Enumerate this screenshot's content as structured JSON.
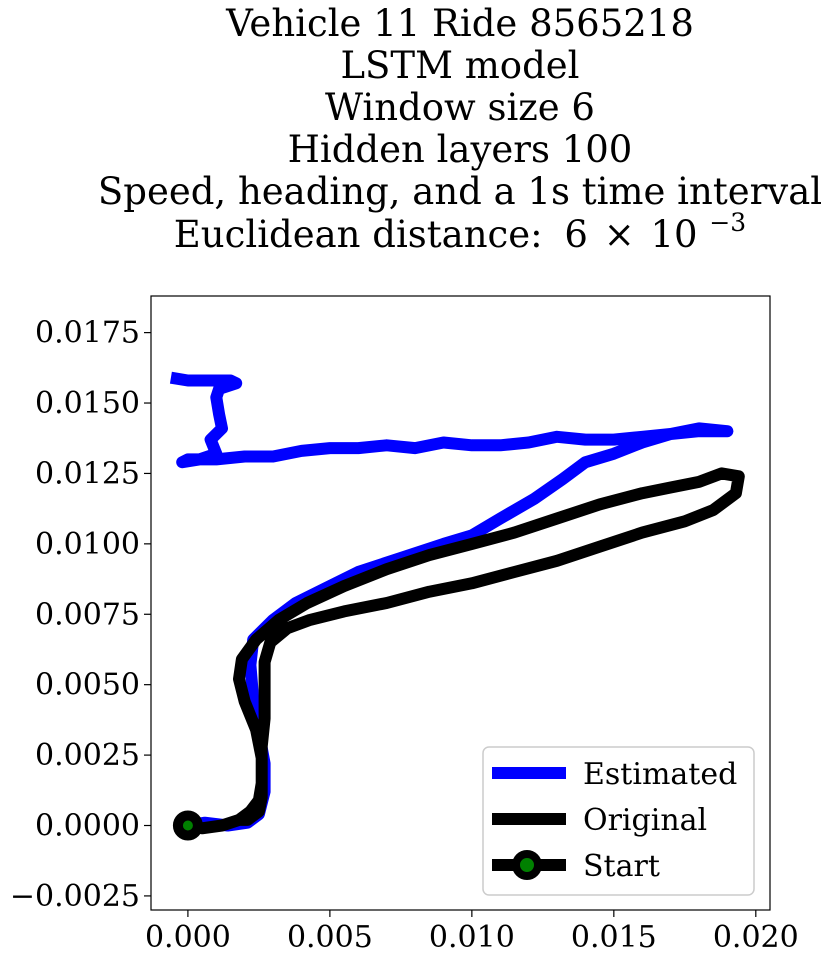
{
  "chart_data": {
    "type": "line",
    "title_lines": [
      "Vehicle 11 Ride 8565218",
      "LSTM model",
      "Window size 6",
      "Hidden layers 100",
      "Speed, heading, and a 1s time interval"
    ],
    "title_distance_label": "Euclidean distance:",
    "title_distance_mantissa": "6",
    "title_distance_times": "×",
    "title_distance_base": "10",
    "title_distance_exponent": "−3",
    "xlim": [
      -0.0013,
      0.0205
    ],
    "ylim": [
      -0.003,
      0.0188
    ],
    "xticks": [
      0.0,
      0.005,
      0.01,
      0.015,
      0.02
    ],
    "xtick_labels": [
      "0.000",
      "0.005",
      "0.010",
      "0.015",
      "0.020"
    ],
    "yticks": [
      -0.0025,
      0.0,
      0.0025,
      0.005,
      0.0075,
      0.01,
      0.0125,
      0.015,
      0.0175
    ],
    "ytick_labels": [
      "−0.0025",
      "0.0000",
      "0.0025",
      "0.0050",
      "0.0075",
      "0.0100",
      "0.0125",
      "0.0150",
      "0.0175"
    ],
    "grid": false,
    "legend_position": "bottom-right",
    "series": [
      {
        "name": "Estimated",
        "color": "#0000ff",
        "points": [
          [
            0.0,
            0.0
          ],
          [
            0.0006,
            0.0001
          ],
          [
            0.0014,
            0.0
          ],
          [
            0.0021,
            0.0001
          ],
          [
            0.0025,
            0.0004
          ],
          [
            0.0027,
            0.0012
          ],
          [
            0.0027,
            0.0022
          ],
          [
            0.0025,
            0.0033
          ],
          [
            0.0023,
            0.0045
          ],
          [
            0.0022,
            0.0057
          ],
          [
            0.0023,
            0.0066
          ],
          [
            0.003,
            0.0073
          ],
          [
            0.0038,
            0.0079
          ],
          [
            0.0048,
            0.0084
          ],
          [
            0.006,
            0.009
          ],
          [
            0.0075,
            0.0095
          ],
          [
            0.009,
            0.01
          ],
          [
            0.01,
            0.0103
          ],
          [
            0.011,
            0.0109
          ],
          [
            0.0122,
            0.0116
          ],
          [
            0.0132,
            0.0123
          ],
          [
            0.014,
            0.0129
          ],
          [
            0.015,
            0.0132
          ],
          [
            0.016,
            0.0136
          ],
          [
            0.017,
            0.0139
          ],
          [
            0.018,
            0.0141
          ],
          [
            0.019,
            0.014
          ],
          [
            0.018,
            0.014
          ],
          [
            0.017,
            0.0139
          ],
          [
            0.016,
            0.0138
          ],
          [
            0.015,
            0.0137
          ],
          [
            0.014,
            0.0137
          ],
          [
            0.013,
            0.0138
          ],
          [
            0.012,
            0.0136
          ],
          [
            0.011,
            0.0135
          ],
          [
            0.01,
            0.0135
          ],
          [
            0.009,
            0.0136
          ],
          [
            0.008,
            0.0134
          ],
          [
            0.007,
            0.0135
          ],
          [
            0.006,
            0.0134
          ],
          [
            0.005,
            0.0134
          ],
          [
            0.004,
            0.0133
          ],
          [
            0.003,
            0.0131
          ],
          [
            0.002,
            0.0131
          ],
          [
            0.001,
            0.013
          ],
          [
            0.0,
            0.013
          ],
          [
            -0.0002,
            0.0129
          ],
          [
            0.0004,
            0.013
          ],
          [
            0.001,
            0.0132
          ],
          [
            0.0008,
            0.0137
          ],
          [
            0.0012,
            0.0141
          ],
          [
            0.0011,
            0.0146
          ],
          [
            0.001,
            0.0152
          ],
          [
            0.0011,
            0.0155
          ],
          [
            0.0017,
            0.0157
          ],
          [
            0.0015,
            0.0158
          ],
          [
            0.0007,
            0.0158
          ],
          [
            0.0,
            0.0158
          ],
          [
            -0.0006,
            0.0159
          ]
        ]
      },
      {
        "name": "Original",
        "color": "#000000",
        "points": [
          [
            0.0,
            0.0
          ],
          [
            0.0005,
            -0.0001
          ],
          [
            0.0012,
            0.0
          ],
          [
            0.0018,
            0.0002
          ],
          [
            0.0022,
            0.0005
          ],
          [
            0.0025,
            0.0009
          ],
          [
            0.0026,
            0.0015
          ],
          [
            0.0026,
            0.0024
          ],
          [
            0.0024,
            0.0034
          ],
          [
            0.002,
            0.0044
          ],
          [
            0.0018,
            0.0052
          ],
          [
            0.0019,
            0.0059
          ],
          [
            0.0024,
            0.0066
          ],
          [
            0.0032,
            0.0073
          ],
          [
            0.0042,
            0.0079
          ],
          [
            0.0055,
            0.0085
          ],
          [
            0.007,
            0.0091
          ],
          [
            0.0085,
            0.0096
          ],
          [
            0.01,
            0.01
          ],
          [
            0.0115,
            0.0104
          ],
          [
            0.013,
            0.0109
          ],
          [
            0.0145,
            0.0114
          ],
          [
            0.016,
            0.0118
          ],
          [
            0.017,
            0.012
          ],
          [
            0.018,
            0.0122
          ],
          [
            0.0188,
            0.0125
          ],
          [
            0.0194,
            0.0124
          ],
          [
            0.0193,
            0.0118
          ],
          [
            0.0185,
            0.0112
          ],
          [
            0.0175,
            0.0108
          ],
          [
            0.016,
            0.0104
          ],
          [
            0.0145,
            0.0099
          ],
          [
            0.013,
            0.0094
          ],
          [
            0.0115,
            0.009
          ],
          [
            0.01,
            0.0086
          ],
          [
            0.0085,
            0.0083
          ],
          [
            0.007,
            0.0079
          ],
          [
            0.0055,
            0.0076
          ],
          [
            0.0043,
            0.0073
          ],
          [
            0.0035,
            0.007
          ],
          [
            0.0029,
            0.0065
          ],
          [
            0.0027,
            0.0058
          ],
          [
            0.0027,
            0.0048
          ],
          [
            0.0027,
            0.0038
          ],
          [
            0.0026,
            0.0028
          ],
          [
            0.0026,
            0.0018
          ],
          [
            0.0026,
            0.001
          ],
          [
            0.0025,
            0.0005
          ],
          [
            0.0021,
            0.0002
          ],
          [
            0.0018,
            0.0002
          ]
        ]
      },
      {
        "name": "Start",
        "color": "#000000",
        "marker_face_color": "#008000",
        "points": [
          [
            0.0,
            0.0
          ]
        ]
      }
    ]
  }
}
